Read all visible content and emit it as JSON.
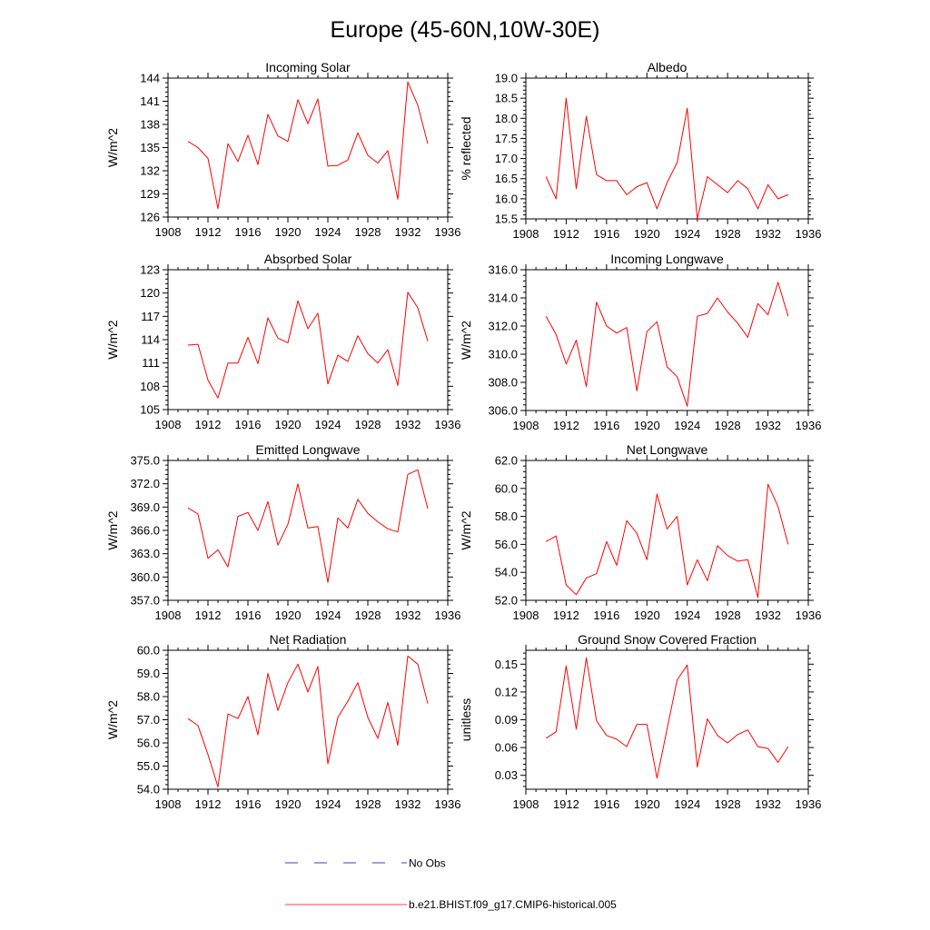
{
  "figure": {
    "title": "Europe (45-60N,10W-30E)",
    "legend": [
      {
        "label": "No Obs",
        "color": "#3b3bd6",
        "style": "dashed"
      },
      {
        "label": "b.e21.BHIST.f09_g17.CMIP6-historical.005",
        "color": "#ff0000",
        "style": "solid"
      }
    ]
  },
  "chart_data": [
    {
      "type": "line",
      "title": "Incoming Solar",
      "xlabel": "",
      "ylabel": "W/m^2",
      "xlim": [
        1908,
        1936
      ],
      "ylim": [
        126,
        144
      ],
      "xticks": [
        1908,
        1912,
        1916,
        1920,
        1924,
        1928,
        1932,
        1936
      ],
      "yticks": [
        "126",
        "129",
        "132",
        "135",
        "138",
        "141",
        "144"
      ],
      "x": [
        1910,
        1911,
        1912,
        1913,
        1914,
        1915,
        1916,
        1917,
        1918,
        1919,
        1920,
        1921,
        1922,
        1923,
        1924,
        1925,
        1926,
        1927,
        1928,
        1929,
        1930,
        1931,
        1932,
        1933,
        1934
      ],
      "series": [
        {
          "name": "b.e21.BHIST.f09_g17.CMIP6-historical.005",
          "color": "#ff0000",
          "values": [
            135.8,
            135.0,
            133.6,
            127.1,
            135.5,
            133.2,
            136.6,
            132.8,
            139.3,
            136.5,
            135.8,
            141.2,
            138.1,
            141.3,
            132.6,
            132.7,
            133.4,
            136.9,
            134.0,
            133.0,
            134.6,
            128.3,
            143.5,
            140.5,
            135.5
          ]
        }
      ]
    },
    {
      "type": "line",
      "title": "Albedo",
      "xlabel": "",
      "ylabel": "% reflected",
      "xlim": [
        1908,
        1936
      ],
      "ylim": [
        15.5,
        19.0
      ],
      "xticks": [
        1908,
        1912,
        1916,
        1920,
        1924,
        1928,
        1932,
        1936
      ],
      "yticks": [
        "15.5",
        "16.0",
        "16.5",
        "17.0",
        "17.5",
        "18.0",
        "18.5",
        "19.0"
      ],
      "x": [
        1910,
        1911,
        1912,
        1913,
        1914,
        1915,
        1916,
        1917,
        1918,
        1919,
        1920,
        1921,
        1922,
        1923,
        1924,
        1925,
        1926,
        1927,
        1928,
        1929,
        1930,
        1931,
        1932,
        1933,
        1934
      ],
      "series": [
        {
          "name": "b.e21.BHIST.f09_g17.CMIP6-historical.005",
          "color": "#ff0000",
          "values": [
            16.55,
            16.0,
            18.5,
            16.25,
            18.05,
            16.6,
            16.45,
            16.45,
            16.1,
            16.3,
            16.4,
            15.75,
            16.4,
            16.9,
            18.25,
            15.5,
            16.55,
            16.35,
            16.15,
            16.45,
            16.25,
            15.75,
            16.35,
            16.0,
            16.1
          ]
        }
      ]
    },
    {
      "type": "line",
      "title": "Absorbed Solar",
      "xlabel": "",
      "ylabel": "W/m^2",
      "xlim": [
        1908,
        1936
      ],
      "ylim": [
        105,
        123
      ],
      "xticks": [
        1908,
        1912,
        1916,
        1920,
        1924,
        1928,
        1932,
        1936
      ],
      "yticks": [
        "105",
        "108",
        "111",
        "114",
        "117",
        "120",
        "123"
      ],
      "x": [
        1910,
        1911,
        1912,
        1913,
        1914,
        1915,
        1916,
        1917,
        1918,
        1919,
        1920,
        1921,
        1922,
        1923,
        1924,
        1925,
        1926,
        1927,
        1928,
        1929,
        1930,
        1931,
        1932,
        1933,
        1934
      ],
      "series": [
        {
          "name": "b.e21.BHIST.f09_g17.CMIP6-historical.005",
          "color": "#ff0000",
          "values": [
            113.3,
            113.4,
            108.8,
            106.5,
            111.0,
            111.0,
            114.3,
            110.9,
            116.8,
            114.2,
            113.6,
            119.0,
            115.4,
            117.4,
            108.3,
            112.0,
            111.2,
            114.5,
            112.2,
            111.0,
            112.7,
            108.1,
            120.1,
            118.1,
            113.8
          ]
        }
      ]
    },
    {
      "type": "line",
      "title": "Incoming Longwave",
      "xlabel": "",
      "ylabel": "W/m^2",
      "xlim": [
        1908,
        1936
      ],
      "ylim": [
        306.0,
        316.0
      ],
      "xticks": [
        1908,
        1912,
        1916,
        1920,
        1924,
        1928,
        1932,
        1936
      ],
      "yticks": [
        "306.0",
        "308.0",
        "310.0",
        "312.0",
        "314.0",
        "316.0"
      ],
      "x": [
        1910,
        1911,
        1912,
        1913,
        1914,
        1915,
        1916,
        1917,
        1918,
        1919,
        1920,
        1921,
        1922,
        1923,
        1924,
        1925,
        1926,
        1927,
        1928,
        1929,
        1930,
        1931,
        1932,
        1933,
        1934
      ],
      "series": [
        {
          "name": "b.e21.BHIST.f09_g17.CMIP6-historical.005",
          "color": "#ff0000",
          "values": [
            312.7,
            311.4,
            309.3,
            311.0,
            307.7,
            313.7,
            312.0,
            311.5,
            311.9,
            307.4,
            311.6,
            312.3,
            309.1,
            308.4,
            306.3,
            312.7,
            312.9,
            314.0,
            313.0,
            312.2,
            311.2,
            313.6,
            312.8,
            315.1,
            312.7
          ]
        }
      ]
    },
    {
      "type": "line",
      "title": "Emitted Longwave",
      "xlabel": "",
      "ylabel": "W/m^2",
      "xlim": [
        1908,
        1936
      ],
      "ylim": [
        357.0,
        375.0
      ],
      "xticks": [
        1908,
        1912,
        1916,
        1920,
        1924,
        1928,
        1932,
        1936
      ],
      "yticks": [
        "357.0",
        "360.0",
        "363.0",
        "366.0",
        "369.0",
        "372.0",
        "375.0"
      ],
      "x": [
        1910,
        1911,
        1912,
        1913,
        1914,
        1915,
        1916,
        1917,
        1918,
        1919,
        1920,
        1921,
        1922,
        1923,
        1924,
        1925,
        1926,
        1927,
        1928,
        1929,
        1930,
        1931,
        1932,
        1933,
        1934
      ],
      "series": [
        {
          "name": "b.e21.BHIST.f09_g17.CMIP6-historical.005",
          "color": "#ff0000",
          "values": [
            368.9,
            368.1,
            362.4,
            363.5,
            361.3,
            367.8,
            368.3,
            366.0,
            369.7,
            364.1,
            366.8,
            372.0,
            366.3,
            366.5,
            359.3,
            367.6,
            366.3,
            370.0,
            368.2,
            367.1,
            366.2,
            365.8,
            373.2,
            373.8,
            368.8
          ]
        }
      ]
    },
    {
      "type": "line",
      "title": "Net Longwave",
      "xlabel": "",
      "ylabel": "W/m^2",
      "xlim": [
        1908,
        1936
      ],
      "ylim": [
        52.0,
        62.0
      ],
      "xticks": [
        1908,
        1912,
        1916,
        1920,
        1924,
        1928,
        1932,
        1936
      ],
      "yticks": [
        "52.0",
        "54.0",
        "56.0",
        "58.0",
        "60.0",
        "62.0"
      ],
      "x": [
        1910,
        1911,
        1912,
        1913,
        1914,
        1915,
        1916,
        1917,
        1918,
        1919,
        1920,
        1921,
        1922,
        1923,
        1924,
        1925,
        1926,
        1927,
        1928,
        1929,
        1930,
        1931,
        1932,
        1933,
        1934
      ],
      "series": [
        {
          "name": "b.e21.BHIST.f09_g17.CMIP6-historical.005",
          "color": "#ff0000",
          "values": [
            56.2,
            56.6,
            53.1,
            52.4,
            53.6,
            53.9,
            56.2,
            54.5,
            57.7,
            56.8,
            54.9,
            59.6,
            57.1,
            58.0,
            53.1,
            54.9,
            53.4,
            55.9,
            55.2,
            54.8,
            54.9,
            52.2,
            60.3,
            58.7,
            56.0
          ]
        }
      ]
    },
    {
      "type": "line",
      "title": "Net Radiation",
      "xlabel": "",
      "ylabel": "W/m^2",
      "xlim": [
        1908,
        1936
      ],
      "ylim": [
        54.0,
        60.0
      ],
      "xticks": [
        1908,
        1912,
        1916,
        1920,
        1924,
        1928,
        1932,
        1936
      ],
      "yticks": [
        "54.0",
        "55.0",
        "56.0",
        "57.0",
        "58.0",
        "59.0",
        "60.0"
      ],
      "x": [
        1910,
        1911,
        1912,
        1913,
        1914,
        1915,
        1916,
        1917,
        1918,
        1919,
        1920,
        1921,
        1922,
        1923,
        1924,
        1925,
        1926,
        1927,
        1928,
        1929,
        1930,
        1931,
        1932,
        1933,
        1934
      ],
      "series": [
        {
          "name": "b.e21.BHIST.f09_g17.CMIP6-historical.005",
          "color": "#ff0000",
          "values": [
            57.05,
            56.75,
            55.5,
            54.1,
            57.25,
            57.05,
            58.0,
            56.35,
            59.0,
            57.4,
            58.6,
            59.4,
            58.2,
            59.3,
            55.1,
            57.1,
            57.8,
            58.6,
            57.1,
            56.2,
            57.75,
            55.9,
            59.75,
            59.4,
            57.7
          ]
        }
      ]
    },
    {
      "type": "line",
      "title": "Ground Snow Covered Fraction",
      "xlabel": "",
      "ylabel": "unitless",
      "xlim": [
        1908,
        1936
      ],
      "ylim": [
        0.015,
        0.165
      ],
      "xticks": [
        1908,
        1912,
        1916,
        1920,
        1924,
        1928,
        1932,
        1936
      ],
      "yticks": [
        "0.03",
        "0.06",
        "0.09",
        "0.12",
        "0.15"
      ],
      "x": [
        1910,
        1911,
        1912,
        1913,
        1914,
        1915,
        1916,
        1917,
        1918,
        1919,
        1920,
        1921,
        1922,
        1923,
        1924,
        1925,
        1926,
        1927,
        1928,
        1929,
        1930,
        1931,
        1932,
        1933,
        1934
      ],
      "series": [
        {
          "name": "b.e21.BHIST.f09_g17.CMIP6-historical.005",
          "color": "#ff0000",
          "values": [
            0.07,
            0.077,
            0.148,
            0.08,
            0.157,
            0.089,
            0.073,
            0.069,
            0.061,
            0.085,
            0.085,
            0.027,
            0.08,
            0.133,
            0.149,
            0.039,
            0.091,
            0.073,
            0.065,
            0.074,
            0.079,
            0.061,
            0.059,
            0.044,
            0.061
          ]
        }
      ]
    }
  ]
}
